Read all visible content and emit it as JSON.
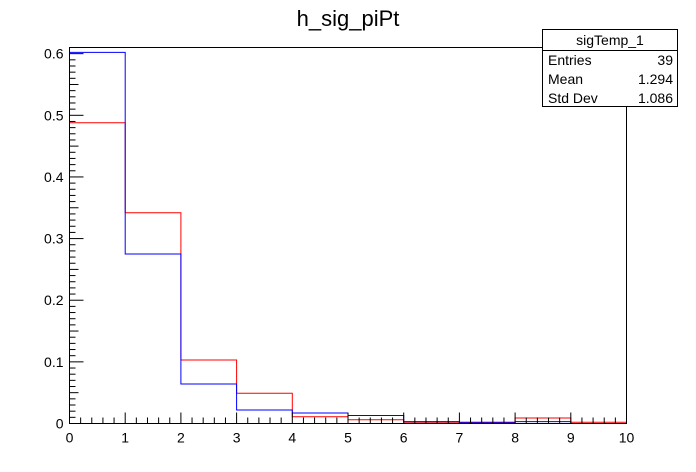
{
  "chart_data": {
    "type": "histogram",
    "title": "h_sig_piPt",
    "xlim": [
      0,
      10
    ],
    "ylim": [
      0,
      0.61
    ],
    "x_ticks": [
      0,
      1,
      2,
      3,
      4,
      5,
      6,
      7,
      8,
      9,
      10
    ],
    "y_ticks": [
      0,
      0.1,
      0.2,
      0.3,
      0.4,
      0.5,
      0.6
    ],
    "bin_edges": [
      0,
      1,
      2,
      3,
      4,
      5,
      6,
      7,
      8,
      9,
      10
    ],
    "series": [
      {
        "color": "#ff0000",
        "values": [
          0.488,
          0.342,
          0.103,
          0.049,
          0.011,
          0.006,
          0.002,
          0.001,
          0.009,
          0.002
        ]
      },
      {
        "color": "#0000ff",
        "values": [
          0.602,
          0.275,
          0.064,
          0.022,
          0.017,
          0.013,
          0.003,
          0.002,
          0.003,
          0.0
        ]
      }
    ],
    "stats": {
      "name": "sigTemp_1",
      "rows": [
        {
          "label": "Entries",
          "value": "39"
        },
        {
          "label": "Mean",
          "value": "1.294"
        },
        {
          "label": "Std Dev",
          "value": "1.086"
        }
      ]
    }
  }
}
